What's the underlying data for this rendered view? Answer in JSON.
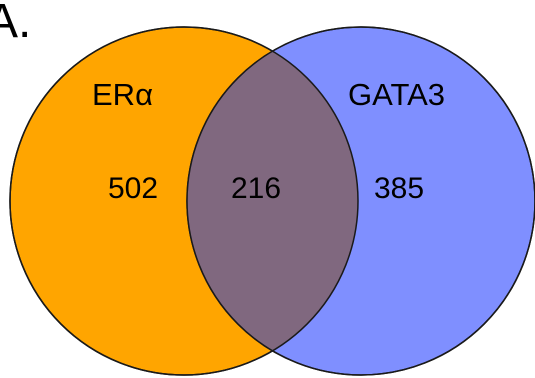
{
  "panel_label": "A.",
  "sets": [
    {
      "name": "ERα",
      "color": "#FFA500"
    },
    {
      "name": "GATA3",
      "color": "#7F8FFF"
    }
  ],
  "overlap_color": "#80687F",
  "counts": {
    "left_only": "502",
    "both": "216",
    "right_only": "385"
  }
}
